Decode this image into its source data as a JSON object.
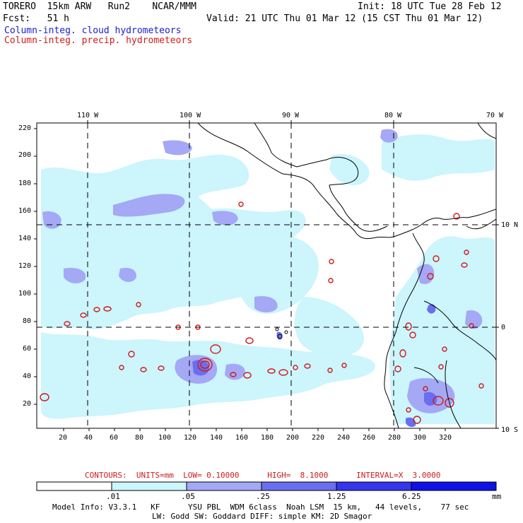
{
  "header": {
    "model": "TORERO  15km ARW   Run2    NCAR/MMM",
    "init": "Init: 18 UTC Tue 28 Feb 12",
    "fcst": "Fcst:   51 h",
    "valid": "Valid: 21 UTC Thu 01 Mar 12 (15 CST Thu 01 Mar 12)",
    "field1": "Column-integ. cloud hydrometeors",
    "field2": "Column-integ. precip. hydrometeors"
  },
  "colors": {
    "field1": "#1a1ad0",
    "field2": "#d01a1a",
    "scale": [
      "#ffffff",
      "#ccf5fc",
      "#a4a8f5",
      "#6a6ef0",
      "#3535ec",
      "#1010e8"
    ]
  },
  "top_lon_labels": [
    "110 W",
    "100 W",
    "90 W",
    "80 W",
    "70 W"
  ],
  "right_lat_labels": [
    "10 N",
    "0",
    "10 S"
  ],
  "y_ticks": [
    "220",
    "200",
    "180",
    "160",
    "140",
    "120",
    "100",
    "80",
    "60",
    "40",
    "20"
  ],
  "x_ticks": [
    "20",
    "40",
    "60",
    "80",
    "100",
    "120",
    "140",
    "160",
    "180",
    "200",
    "220",
    "240",
    "260",
    "280",
    "300",
    "320"
  ],
  "contours_line": "CONTOURS:  UNITS=mm  LOW= 0.10000      HIGH=  8.1000      INTERVAL=X  3.0000",
  "colorbar": {
    "labels": [
      ".01",
      ".05",
      ".25",
      "1.25",
      "6.25"
    ],
    "unit": "mm"
  },
  "model_info1": "Model Info: V3.3.1   KF      YSU PBL  WDM 6class  Noah LSM  15 km,   44 levels,    77 sec",
  "model_info2": "LW: Godd SW: Goddard DIFF: simple KM: 2D Smagor"
}
